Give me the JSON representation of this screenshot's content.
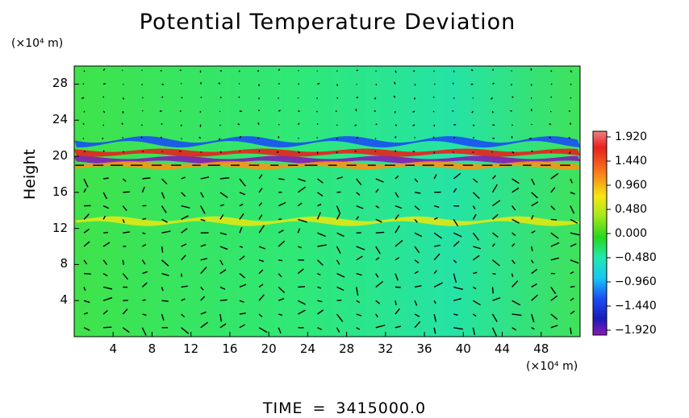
{
  "chart_data": {
    "type": "heatmap",
    "title": "Potential Temperature Deviation",
    "ylabel": "Height",
    "y_unit_label": "(×10⁴ m)",
    "x_unit_label": "(×10⁴ m)",
    "xlim": [
      0,
      52
    ],
    "ylim": [
      0,
      30
    ],
    "x_ticks": [
      "4",
      "8",
      "12",
      "16",
      "20",
      "24",
      "28",
      "32",
      "36",
      "40",
      "44",
      "48"
    ],
    "y_ticks": [
      "4",
      "8",
      "12",
      "16",
      "20",
      "24",
      "28"
    ],
    "colorbar": {
      "labels": [
        "1.920",
        "1.440",
        "0.960",
        "0.480",
        "0.000",
        "−0.480",
        "−0.960",
        "−1.440",
        "−1.920"
      ],
      "min": -1.92,
      "max": 1.92
    },
    "overlay": "wind vector arrows",
    "bands": [
      {
        "feature": "strong negative layer",
        "y_center": 19.6,
        "value": -1.9
      },
      {
        "feature": "positive layer above tropopause",
        "y_center": 20.4,
        "value": 1.6
      },
      {
        "feature": "negative wave layer",
        "y_center": 21.6,
        "value": -1.1
      },
      {
        "feature": "warm layer",
        "y_center": 19.0,
        "value": 1.1
      },
      {
        "feature": "positive band",
        "y_center": 12.8,
        "value": 0.7
      }
    ]
  },
  "footer": {
    "time_label": "TIME",
    "equals": "=",
    "time_value": "3415000.0"
  }
}
